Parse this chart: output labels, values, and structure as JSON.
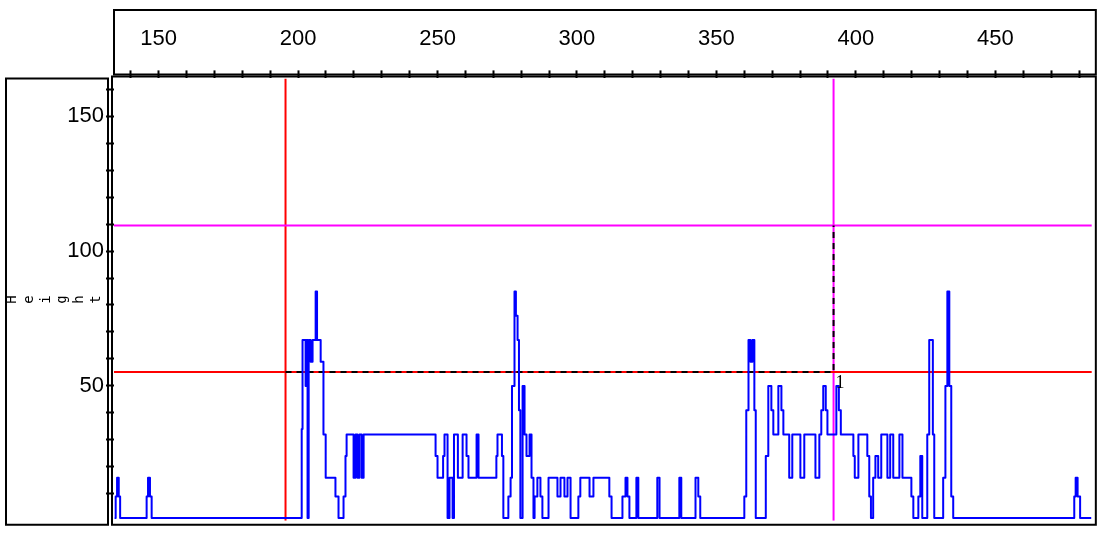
{
  "chart_data": {
    "type": "step",
    "ylabel": "Height",
    "xlim": [
      134,
      484.6
    ],
    "ylim": [
      0,
      164
    ],
    "xticks": [
      {
        "value": 140,
        "label": null
      },
      150,
      {
        "value": 160,
        "label": null
      },
      {
        "value": 170,
        "label": null
      },
      {
        "value": 180,
        "label": null
      },
      {
        "value": 190,
        "label": null
      },
      200,
      {
        "value": 210,
        "label": null
      },
      {
        "value": 220,
        "label": null
      },
      {
        "value": 230,
        "label": null
      },
      {
        "value": 240,
        "label": null
      },
      250,
      {
        "value": 260,
        "label": null
      },
      {
        "value": 270,
        "label": null
      },
      {
        "value": 280,
        "label": null
      },
      {
        "value": 290,
        "label": null
      },
      300,
      {
        "value": 310,
        "label": null
      },
      {
        "value": 320,
        "label": null
      },
      {
        "value": 330,
        "label": null
      },
      {
        "value": 340,
        "label": null
      },
      350,
      {
        "value": 360,
        "label": null
      },
      {
        "value": 370,
        "label": null
      },
      {
        "value": 380,
        "label": null
      },
      {
        "value": 390,
        "label": null
      },
      400,
      {
        "value": 410,
        "label": null
      },
      {
        "value": 420,
        "label": null
      },
      {
        "value": 430,
        "label": null
      },
      {
        "value": 440,
        "label": null
      },
      450,
      {
        "value": 460,
        "label": null
      },
      {
        "value": 470,
        "label": null
      },
      {
        "value": 480,
        "label": null
      }
    ],
    "yticks": [
      {
        "value": 10,
        "label": null
      },
      {
        "value": 20,
        "label": null
      },
      {
        "value": 30,
        "label": null
      },
      {
        "value": 40,
        "label": null
      },
      50,
      {
        "value": 60,
        "label": null
      },
      {
        "value": 70,
        "label": null
      },
      {
        "value": 80,
        "label": null
      },
      {
        "value": 90,
        "label": null
      },
      100,
      {
        "value": 110,
        "label": null
      },
      {
        "value": 120,
        "label": null
      },
      {
        "value": 130,
        "label": null
      },
      {
        "value": 140,
        "label": null
      },
      150,
      {
        "value": 160,
        "label": null
      }
    ],
    "grid": false,
    "legend": false,
    "series": [
      {
        "color": "#0000ff",
        "x": [
          134.2,
          134.6,
          135.1,
          135.7,
          136.2,
          145.7,
          146.2,
          146.9,
          147.5,
          201.3,
          201.6,
          202.7,
          203.0,
          203.4,
          203.8,
          204.5,
          205.2,
          206.3,
          206.8,
          208.1,
          209.1,
          209.9,
          213.4,
          214.5,
          216.3,
          217.0,
          217.4,
          219.9,
          220.6,
          221.3,
          222.0,
          222.8,
          223.5,
          249.3,
          250.0,
          252.0,
          252.5,
          253.6,
          254.3,
          255.4,
          255.9,
          257.3,
          259.0,
          260.4,
          261.1,
          264.0,
          264.7,
          271.1,
          271.5,
          273.1,
          273.6,
          275.4,
          276.2,
          276.7,
          277.6,
          278.1,
          278.7,
          279.2,
          279.7,
          280.5,
          281.2,
          281.9,
          283.0,
          283.7,
          284.4,
          284.8,
          285.8,
          286.9,
          287.6,
          289.8,
          293.0,
          294.1,
          295.5,
          296.6,
          297.7,
          300.5,
          301.2,
          304.5,
          305.9,
          311.6,
          312.4,
          316.3,
          317.4,
          318.1,
          318.8,
          321.3,
          322.0,
          328.8,
          329.6,
          336.7,
          337.4,
          342.5,
          343.5,
          344.2,
          360.0,
          360.7,
          361.5,
          362.2,
          362.9,
          363.6,
          364.1,
          367.7,
          368.6,
          369.7,
          370.4,
          372.2,
          373.3,
          374.0,
          376.1,
          377.2,
          380.1,
          381.5,
          385.5,
          386.9,
          387.6,
          388.3,
          389.2,
          389.8,
          393.0,
          393.9,
          394.6,
          399.1,
          399.6,
          400.9,
          404.1,
          404.8,
          405.4,
          406.2,
          407.0,
          408.0,
          409.1,
          411.3,
          412.3,
          413.4,
          415.6,
          416.7,
          419.9,
          420.6,
          422.4,
          423.1,
          423.8,
          425.6,
          426.3,
          427.6,
          428.1,
          431.3,
          432.1,
          432.8,
          433.5,
          434.2,
          434.9,
          478.3,
          478.8,
          479.5,
          480.4,
          484.4
        ],
        "values": [
          1,
          9,
          16,
          9,
          1,
          9,
          16,
          9,
          1,
          34,
          67,
          50,
          67,
          1,
          67,
          59,
          67,
          85,
          67,
          59,
          32,
          16,
          9,
          1,
          9,
          24,
          32,
          16,
          32,
          16,
          32,
          16,
          32,
          24,
          16,
          24,
          32,
          1,
          16,
          1,
          32,
          16,
          32,
          24,
          16,
          32,
          16,
          24,
          32,
          24,
          1,
          9,
          16,
          50,
          85,
          76,
          67,
          41,
          1,
          50,
          32,
          24,
          32,
          16,
          1,
          9,
          16,
          9,
          1,
          16,
          9,
          16,
          9,
          16,
          1,
          9,
          16,
          9,
          16,
          9,
          1,
          9,
          16,
          9,
          1,
          16,
          1,
          16,
          1,
          16,
          1,
          16,
          9,
          1,
          9,
          41,
          67,
          59,
          67,
          41,
          1,
          24,
          50,
          41,
          32,
          50,
          41,
          32,
          16,
          32,
          16,
          32,
          16,
          32,
          41,
          50,
          41,
          32,
          50,
          41,
          32,
          24,
          16,
          32,
          24,
          9,
          1,
          16,
          24,
          16,
          32,
          16,
          32,
          16,
          32,
          16,
          9,
          1,
          9,
          24,
          1,
          32,
          67,
          32,
          1,
          16,
          50,
          85,
          50,
          9,
          1,
          9,
          16,
          9,
          1,
          1
        ]
      },
      {
        "type": "line",
        "color": "#000000",
        "line_style": "dashed",
        "marker": "none",
        "x": [
          195.5,
          392,
          392
        ],
        "values": [
          55.2,
          55.2,
          109.5
        ]
      }
    ],
    "ref_lines": [
      {
        "axis": "x",
        "value": 195.5,
        "color": "#ff0000"
      },
      {
        "axis": "x",
        "value": 392,
        "color": "#ff00ff"
      },
      {
        "axis": "y",
        "value": 55.2,
        "color": "#ff0000"
      },
      {
        "axis": "y",
        "value": 109.5,
        "color": "#ff00ff"
      }
    ],
    "annotations": [
      {
        "text": "1",
        "x": 392,
        "y": 55.2
      }
    ]
  }
}
